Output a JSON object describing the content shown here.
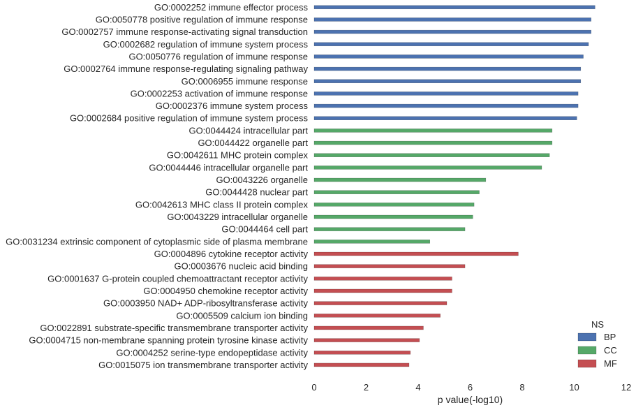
{
  "chart_data": {
    "type": "bar",
    "orientation": "horizontal",
    "xlabel": "p value(-log10)",
    "ylabel": "",
    "xlim": [
      0,
      12
    ],
    "xticks": [
      "0",
      "2",
      "4",
      "6",
      "8",
      "10",
      "12"
    ],
    "grid": false,
    "legend": {
      "title": "NS",
      "placement": "bottom-right"
    },
    "colors": {
      "BP": "#4c72b0",
      "CC": "#55a868",
      "MF": "#c44e52"
    },
    "series": [
      {
        "name": "BP",
        "items": [
          {
            "label": "GO:0002252 immune effector process",
            "value": 10.8
          },
          {
            "label": "GO:0050778 positive regulation of immune response",
            "value": 10.65
          },
          {
            "label": "GO:0002757 immune response-activating signal transduction",
            "value": 10.65
          },
          {
            "label": "GO:0002682 regulation of immune system process",
            "value": 10.55
          },
          {
            "label": "GO:0050776 regulation of immune response",
            "value": 10.35
          },
          {
            "label": "GO:0002764 immune response-regulating signaling pathway",
            "value": 10.25
          },
          {
            "label": "GO:0006955 immune response",
            "value": 10.25
          },
          {
            "label": "GO:0002253 activation of immune response",
            "value": 10.15
          },
          {
            "label": "GO:0002376 immune system process",
            "value": 10.15
          },
          {
            "label": "GO:0002684 positive regulation of immune system process",
            "value": 10.1
          }
        ]
      },
      {
        "name": "CC",
        "items": [
          {
            "label": "GO:0044424 intracellular part",
            "value": 9.15
          },
          {
            "label": "GO:0044422 organelle part",
            "value": 9.15
          },
          {
            "label": "GO:0042611 MHC protein complex",
            "value": 9.05
          },
          {
            "label": "GO:0044446 intracellular organelle part",
            "value": 8.75
          },
          {
            "label": "GO:0043226 organelle",
            "value": 6.6
          },
          {
            "label": "GO:0044428 nuclear part",
            "value": 6.35
          },
          {
            "label": "GO:0042613 MHC class II protein complex",
            "value": 6.15
          },
          {
            "label": "GO:0043229 intracellular organelle",
            "value": 6.1
          },
          {
            "label": "GO:0044464 cell part",
            "value": 5.8
          },
          {
            "label": "GO:0031234 extrinsic component of cytoplasmic side of plasma membrane",
            "value": 4.45
          }
        ]
      },
      {
        "name": "MF",
        "items": [
          {
            "label": "GO:0004896 cytokine receptor activity",
            "value": 7.85
          },
          {
            "label": "GO:0003676 nucleic acid binding",
            "value": 5.8
          },
          {
            "label": "GO:0001637 G-protein coupled chemoattractant receptor activity",
            "value": 5.3
          },
          {
            "label": "GO:0004950 chemokine receptor activity",
            "value": 5.3
          },
          {
            "label": "GO:0003950 NAD+ ADP-ribosyltransferase activity",
            "value": 5.1
          },
          {
            "label": "GO:0005509 calcium ion binding",
            "value": 4.85
          },
          {
            "label": "GO:0022891 substrate-specific transmembrane transporter activity",
            "value": 4.2
          },
          {
            "label": "GO:0004715 non-membrane spanning protein tyrosine kinase activity",
            "value": 4.05
          },
          {
            "label": "GO:0004252 serine-type endopeptidase activity",
            "value": 3.7
          },
          {
            "label": "GO:0015075 ion transmembrane transporter activity",
            "value": 3.65
          }
        ]
      }
    ]
  }
}
